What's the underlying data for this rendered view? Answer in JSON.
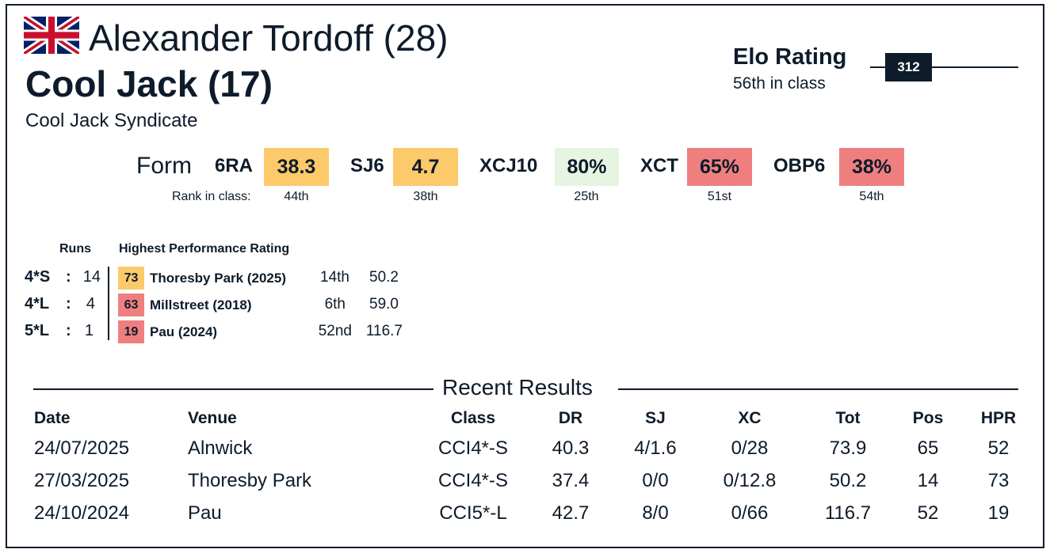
{
  "rider": {
    "name": "Alexander Tordoff (28)",
    "flag": "uk-flag-icon"
  },
  "horse": {
    "name": "Cool Jack (17)",
    "owner": "Cool Jack Syndicate"
  },
  "elo": {
    "title": "Elo Rating",
    "rank": "56th in class",
    "value": "312"
  },
  "form": {
    "label": "Form",
    "rank_label": "Rank in class:",
    "items": [
      {
        "code": "6RA",
        "value": "38.3",
        "rank": "44th",
        "color": "#fcc96b"
      },
      {
        "code": "SJ6",
        "value": "4.7",
        "rank": "38th",
        "color": "#fcc96b"
      },
      {
        "code": "XCJ10",
        "value": "80%",
        "rank": "25th",
        "color": "#e6f5e1"
      },
      {
        "code": "XCT",
        "value": "65%",
        "rank": "51st",
        "color": "#ef7f7f"
      },
      {
        "code": "OBP6",
        "value": "38%",
        "rank": "54th",
        "color": "#ef7f7f"
      }
    ]
  },
  "runs": {
    "runs_header": "Runs",
    "hpr_header": "Highest Performance Rating",
    "rows": [
      {
        "level": "4*S",
        "sep": ":",
        "count": "14",
        "hpr": "73",
        "venue": "Thoresby Park",
        "year": "(2025)",
        "rank": "14th",
        "score": "50.2",
        "color": "#fcc96b"
      },
      {
        "level": "4*L",
        "sep": ":",
        "count": "4",
        "hpr": "63",
        "venue": "Millstreet",
        "year": "(2018)",
        "rank": "6th",
        "score": "59.0",
        "color": "#ef7f7f"
      },
      {
        "level": "5*L",
        "sep": ":",
        "count": "1",
        "hpr": "19",
        "venue": "Pau",
        "year": "(2024)",
        "rank": "52nd",
        "score": "116.7",
        "color": "#ef7f7f"
      }
    ]
  },
  "recent": {
    "title": "Recent Results",
    "headers": [
      "Date",
      "Venue",
      "Class",
      "DR",
      "SJ",
      "XC",
      "Tot",
      "Pos",
      "HPR"
    ],
    "rows": [
      [
        "24/07/2025",
        "Alnwick",
        "CCI4*-S",
        "40.3",
        "4/1.6",
        "0/28",
        "73.9",
        "65",
        "52"
      ],
      [
        "27/03/2025",
        "Thoresby Park",
        "CCI4*-S",
        "37.4",
        "0/0",
        "0/12.8",
        "50.2",
        "14",
        "73"
      ],
      [
        "24/10/2024",
        "Pau",
        "CCI5*-L",
        "42.7",
        "8/0",
        "0/66",
        "116.7",
        "52",
        "19"
      ]
    ]
  }
}
